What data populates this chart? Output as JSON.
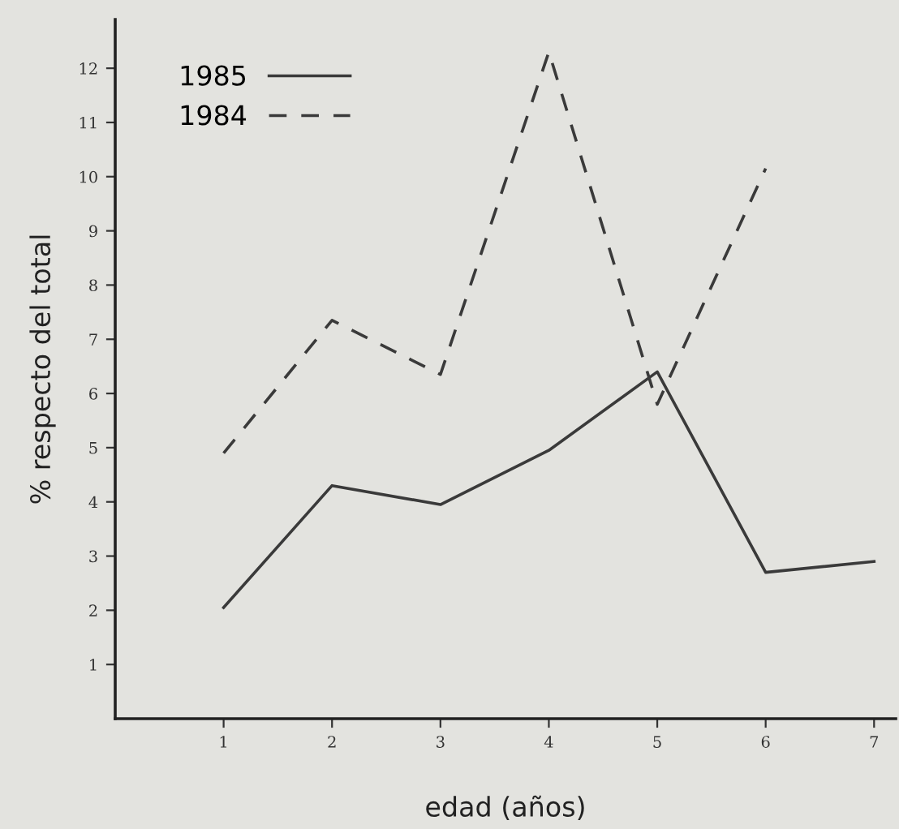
{
  "chart_data": {
    "type": "line",
    "xlabel": "edad (años)",
    "ylabel": "% respecto del total",
    "x": [
      1,
      2,
      3,
      4,
      5,
      6,
      7
    ],
    "series": [
      {
        "name": "1985",
        "color": "#3a3a3a",
        "line_style": "solid",
        "values": [
          2.05,
          4.3,
          3.95,
          4.95,
          6.4,
          2.7,
          2.9
        ]
      },
      {
        "name": "1984",
        "color": "#3a3a3a",
        "line_style": "dashed",
        "values": [
          4.9,
          7.35,
          6.35,
          12.3,
          5.8,
          10.15,
          null
        ]
      }
    ],
    "xlim": [
      0,
      7.2
    ],
    "ylim": [
      0,
      12.9
    ],
    "xticks": [
      1,
      2,
      3,
      4,
      5,
      6,
      7
    ],
    "yticks": [
      1,
      2,
      3,
      4,
      5,
      6,
      7,
      8,
      9,
      10,
      11,
      12
    ],
    "grid": false,
    "legend": "top left",
    "marker": "none"
  }
}
